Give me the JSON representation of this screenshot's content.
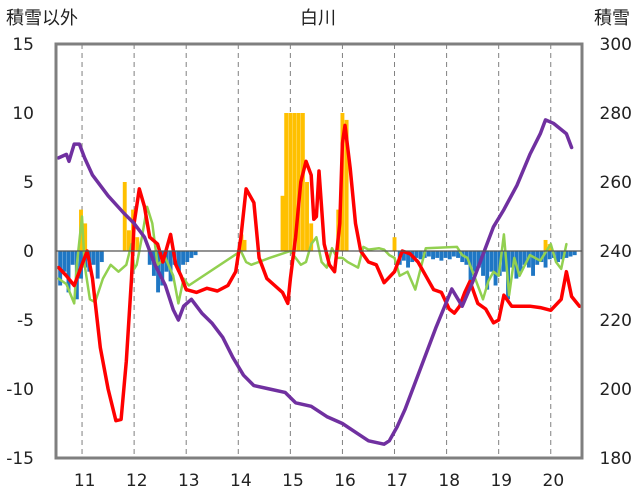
{
  "chart_data": {
    "type": "line",
    "title": "白川",
    "ylabel_left": "積雪以外",
    "ylabel_right": "積雪",
    "x_ticks": [
      "11",
      "12",
      "13",
      "14",
      "15",
      "16",
      "17",
      "18",
      "19",
      "20"
    ],
    "xlim": [
      10.5,
      20.6
    ],
    "ylim_left": [
      -15,
      15
    ],
    "ylim_right": [
      180,
      300
    ],
    "y_ticks_left": [
      15,
      10,
      5,
      0,
      -5,
      -10,
      -15
    ],
    "y_ticks_right": [
      300,
      280,
      260,
      240,
      220,
      200,
      180
    ],
    "grid": "dashed vertical",
    "series": [
      {
        "name": "積雪",
        "axis": "right",
        "color": "#7030a0",
        "x": [
          10.55,
          10.7,
          10.75,
          10.85,
          10.95,
          11.05,
          11.2,
          11.5,
          11.8,
          12.0,
          12.2,
          12.4,
          12.6,
          12.75,
          12.85,
          12.95,
          13.1,
          13.3,
          13.5,
          13.7,
          13.9,
          14.1,
          14.3,
          14.6,
          14.9,
          15.1,
          15.4,
          15.7,
          16.0,
          16.3,
          16.5,
          16.8,
          16.9,
          17.05,
          17.2,
          17.5,
          17.8,
          18.1,
          18.3,
          18.5,
          18.7,
          18.9,
          19.1,
          19.35,
          19.6,
          19.8,
          19.9,
          20.05,
          20.3,
          20.4
        ],
        "values": [
          267,
          268,
          266,
          271,
          271,
          267,
          262,
          256,
          251,
          248,
          244,
          236,
          230,
          223,
          220,
          224,
          226,
          222,
          219,
          215,
          209,
          204,
          201,
          200,
          199,
          196,
          195,
          192,
          190,
          187,
          185,
          184,
          185,
          189,
          194,
          206,
          218,
          229,
          224,
          231,
          239,
          247,
          252,
          259,
          268,
          274,
          278,
          277,
          274,
          270
        ]
      },
      {
        "name": "赤 (red)",
        "axis": "left",
        "color": "#ff0000",
        "x": [
          10.55,
          10.7,
          10.85,
          11.0,
          11.1,
          11.2,
          11.35,
          11.5,
          11.65,
          11.75,
          11.85,
          11.95,
          12.0,
          12.1,
          12.2,
          12.3,
          12.45,
          12.55,
          12.7,
          12.8,
          12.9,
          13.0,
          13.2,
          13.4,
          13.6,
          13.8,
          13.95,
          14.05,
          14.15,
          14.3,
          14.4,
          14.55,
          14.7,
          14.85,
          14.95,
          15.0,
          15.1,
          15.2,
          15.3,
          15.4,
          15.45,
          15.5,
          15.55,
          15.65,
          15.75,
          15.85,
          15.95,
          16.0,
          16.05,
          16.15,
          16.25,
          16.35,
          16.5,
          16.65,
          16.8,
          17.0,
          17.15,
          17.3,
          17.45,
          17.6,
          17.75,
          17.9,
          18.05,
          18.15,
          18.25,
          18.35,
          18.45,
          18.6,
          18.75,
          18.9,
          19.0,
          19.1,
          19.25,
          19.4,
          19.6,
          19.8,
          20.0,
          20.2,
          20.3,
          20.4,
          20.55
        ],
        "values": [
          -1.2,
          -1.8,
          -2.5,
          -1,
          0,
          -2,
          -7,
          -10,
          -12.3,
          -12.2,
          -8,
          -2,
          2,
          4.5,
          3.2,
          1,
          0.5,
          -0.8,
          1.2,
          -1,
          -1.8,
          -2.8,
          -3,
          -2.7,
          -2.9,
          -2.5,
          -1.5,
          1,
          4.5,
          3.5,
          -0.5,
          -2,
          -2.5,
          -3,
          -3.8,
          -2,
          1,
          5,
          6.5,
          5.5,
          2.3,
          2.5,
          5.8,
          0.5,
          -1,
          -1.5,
          2,
          7.8,
          9.1,
          6,
          2,
          0,
          -0.8,
          -1,
          -2.3,
          -1.5,
          0,
          -0.2,
          -0.8,
          -1.8,
          -2.8,
          -3,
          -4.2,
          -4.5,
          -4,
          -3,
          -2.2,
          -3.8,
          -4.2,
          -5.2,
          -5,
          -3.2,
          -4,
          -4,
          -4,
          -4.1,
          -4.3,
          -3.5,
          -1.5,
          -3.3,
          -4
        ]
      },
      {
        "name": "緑 (green)",
        "axis": "left",
        "color": "#92d050",
        "x": [
          10.55,
          10.7,
          10.85,
          10.9,
          11.0,
          11.05,
          11.15,
          11.25,
          11.4,
          11.55,
          11.7,
          11.85,
          11.95,
          12.0,
          12.05,
          12.15,
          12.25,
          12.35,
          12.45,
          12.6,
          12.75,
          12.85,
          12.95,
          13.05,
          14.05,
          14.15,
          14.25,
          14.6,
          15.0,
          15.1,
          15.2,
          15.3,
          15.4,
          15.5,
          15.6,
          15.7,
          15.8,
          15.9,
          16.0,
          16.1,
          16.2,
          16.3,
          16.4,
          16.5,
          16.7,
          16.8,
          16.9,
          17.0,
          17.1,
          17.25,
          17.4,
          17.6,
          18.2,
          18.3,
          18.4,
          18.5,
          18.6,
          18.7,
          18.8,
          18.9,
          19.0,
          19.1,
          19.2,
          19.3,
          19.4,
          19.6,
          19.8,
          20.0,
          20.1,
          20.2,
          20.3
        ],
        "values": [
          -2,
          -2.4,
          -3.8,
          -1,
          2.5,
          -1,
          -3.5,
          -3.7,
          -2,
          -1,
          -1.5,
          -1,
          0.5,
          -1.3,
          -1,
          1,
          3.2,
          2,
          -1,
          -0.5,
          -1.8,
          -3.8,
          -2,
          -2.5,
          0,
          -0.8,
          -1,
          -0.5,
          0,
          -0.5,
          -1,
          -0.8,
          0.5,
          1,
          -0.8,
          -1.2,
          0.2,
          -0.5,
          -0.5,
          -0.8,
          -1,
          -1.2,
          0.3,
          0.1,
          0.2,
          0.1,
          -0.3,
          -0.5,
          -1.8,
          -1.5,
          -2.8,
          0.2,
          0.3,
          -0.3,
          -0.5,
          -1.5,
          -2.5,
          -3.5,
          -2.2,
          -1.5,
          -1.8,
          1.2,
          -3.2,
          -0.5,
          -1.8,
          -0.3,
          -0.7,
          0.5,
          -0.8,
          -1.3,
          0.5
        ]
      },
      {
        "name": "負 (blue bars)",
        "axis": "left",
        "type": "bar",
        "color": "#1f77c4",
        "x": [
          10.58,
          10.66,
          10.74,
          10.82,
          10.9,
          10.98,
          11.06,
          11.14,
          11.22,
          11.3,
          11.38,
          12.3,
          12.38,
          12.46,
          12.54,
          12.62,
          12.7,
          12.78,
          12.86,
          12.94,
          13.02,
          13.1,
          13.18,
          17.1,
          17.18,
          17.26,
          17.34,
          17.42,
          17.5,
          17.58,
          17.66,
          17.74,
          17.82,
          17.9,
          17.98,
          18.06,
          18.14,
          18.22,
          18.3,
          18.38,
          18.46,
          18.54,
          18.62,
          18.7,
          18.78,
          18.86,
          18.94,
          19.02,
          19.1,
          19.18,
          19.26,
          19.34,
          19.42,
          19.5,
          19.58,
          19.66,
          19.74,
          19.82,
          19.9,
          19.98,
          20.06,
          20.14,
          20.22,
          20.3,
          20.38,
          20.46
        ],
        "values": [
          -2.5,
          -1.5,
          -3,
          -1,
          -3.5,
          -2,
          -1.2,
          -1.5,
          -1,
          -2,
          -0.8,
          -1,
          -1.8,
          -3,
          -2.5,
          -1.5,
          -2.2,
          -1,
          -1.5,
          -1,
          -0.8,
          -0.5,
          -0.3,
          -1,
          -0.7,
          -1.2,
          -0.8,
          -0.5,
          -0.6,
          -0.5,
          -0.4,
          -0.6,
          -0.5,
          -0.7,
          -0.5,
          -0.6,
          -0.4,
          -0.5,
          -0.8,
          -1,
          -2.2,
          -1.5,
          -1.2,
          -1.8,
          -2.8,
          -1.5,
          -2.5,
          -1.8,
          -1.5,
          -3.5,
          -1.2,
          -2,
          -1.5,
          -1,
          -1.2,
          -1.8,
          -1,
          -0.8,
          -1.2,
          -0.6,
          -0.5,
          -0.8,
          -0.6,
          -0.5,
          -0.4,
          -0.3
        ]
      },
      {
        "name": "正 (orange bars)",
        "axis": "left",
        "type": "bar",
        "color": "#ffc000",
        "x": [
          10.98,
          11.06,
          11.82,
          11.9,
          11.98,
          12.06,
          14.06,
          14.12,
          14.85,
          14.92,
          15.0,
          15.08,
          15.16,
          15.24,
          15.32,
          15.4,
          15.92,
          16.0,
          16.08,
          17.0,
          19.9,
          19.98
        ],
        "values": [
          3,
          2,
          5,
          1.5,
          3,
          1,
          1.2,
          0.8,
          4,
          10,
          10,
          10,
          10,
          10,
          5,
          2,
          3,
          10,
          9.5,
          1,
          0.8,
          0.5
        ]
      }
    ]
  }
}
